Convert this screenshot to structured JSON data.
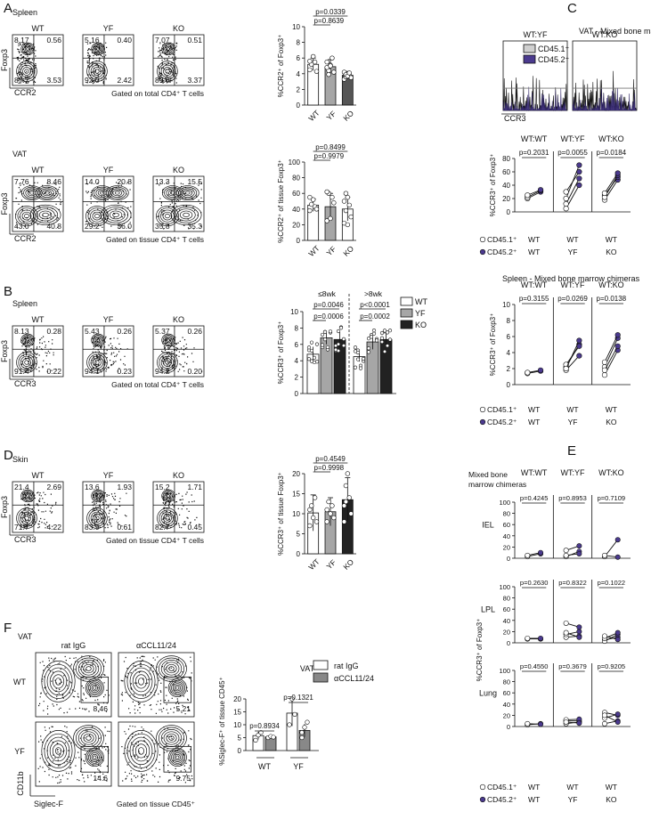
{
  "panel_letters": [
    "A",
    "B",
    "C",
    "D",
    "E",
    "F"
  ],
  "colors": {
    "wt": "#ffffff",
    "yf": "#a6a6a6",
    "ko": "#222222",
    "cd452": "#4b3a8f",
    "cd451": "#ffffff",
    "igg": "#ffffff",
    "ccl": "#888888"
  },
  "A": {
    "spleen": {
      "title": "Spleen",
      "gate": "Gated on total CD4⁺ T cells",
      "xlabel": "CCR2",
      "ylabel": "Foxp3",
      "plots": [
        {
          "label": "WT",
          "q": [
            "8.17",
            "0.56",
            "87.7",
            "3.53"
          ]
        },
        {
          "label": "YF",
          "q": [
            "5.16",
            "0.40",
            "92.0",
            "2.42"
          ]
        },
        {
          "label": "KO",
          "q": [
            "7.07",
            "0.51",
            "89.0",
            "3.37"
          ]
        }
      ]
    },
    "vat": {
      "title": "VAT",
      "gate": "Gated on tissue CD4⁺ T cells",
      "xlabel": "CCR2",
      "ylabel": "Foxp3",
      "plots": [
        {
          "label": "WT",
          "q": [
            "7.76",
            "8.46",
            "43.0",
            "40.8"
          ]
        },
        {
          "label": "YF",
          "q": [
            "14.0",
            "20.8",
            "29.2",
            "36.0"
          ]
        },
        {
          "label": "KO",
          "q": [
            "13.3",
            "15.5",
            "35.8",
            "35.3"
          ]
        }
      ]
    },
    "bar_spleen": {
      "ylabel": "%CCR2⁺ of Foxp3⁺",
      "yticks": [
        "0",
        "2",
        "4",
        "6",
        "8",
        "10"
      ],
      "ylim": [
        0,
        10
      ],
      "categories": [
        "WT",
        "YF",
        "KO"
      ],
      "values": [
        5.2,
        4.9,
        3.8
      ],
      "errors": [
        0.8,
        0.9,
        0.5
      ],
      "pvals": [
        "p=0.0339",
        "p=0.8639"
      ],
      "points": [
        [
          4.5,
          5.2,
          6.2,
          5.5,
          4.3,
          5.6
        ],
        [
          5.5,
          4.4,
          5.1,
          6.0,
          4.2,
          4.8,
          3.9,
          5.0
        ],
        [
          3.3,
          3.6,
          4.0,
          3.8,
          3.5,
          4.2,
          3.9,
          3.7,
          4.1
        ]
      ]
    },
    "bar_vat": {
      "ylabel": "%CCR2⁺ of tissue Foxp3⁺",
      "yticks": [
        "0",
        "20",
        "40",
        "60",
        "80",
        "100"
      ],
      "ylim": [
        0,
        100
      ],
      "categories": [
        "WT",
        "YF",
        "KO"
      ],
      "values": [
        45,
        43,
        40
      ],
      "errors": [
        8,
        17,
        15
      ],
      "pvals": [
        "p=0.8499",
        "p=0.9979"
      ],
      "points": [
        [
          38,
          46,
          52,
          43,
          40,
          55
        ],
        [
          25,
          60,
          28,
          55,
          48,
          62
        ],
        [
          22,
          60,
          55,
          45,
          30,
          50,
          38,
          20
        ]
      ]
    }
  },
  "B": {
    "title": "Spleen",
    "gate": "Gated on total CD4⁺ T cells",
    "xlabel": "CCR3",
    "ylabel": "Foxp3",
    "plots": [
      {
        "label": "WT",
        "q": [
          "8.13",
          "0.28",
          "91.4",
          "0.22"
        ]
      },
      {
        "label": "YF",
        "q": [
          "5.43",
          "0.26",
          "94.1",
          "0.23"
        ]
      },
      {
        "label": "KO",
        "q": [
          "5.37",
          "0.26",
          "94.2",
          "0.20"
        ]
      }
    ],
    "bar": {
      "ylabel": "%CCR3⁺ of Foxp3⁺",
      "yticks": [
        "0",
        "2",
        "4",
        "6",
        "8",
        "10"
      ],
      "ylim": [
        0,
        10
      ],
      "groups": [
        "≤8wk",
        ">8wk"
      ],
      "legend": [
        "WT",
        "YF",
        "KO"
      ],
      "values": [
        [
          4.8,
          6.8,
          6.6
        ],
        [
          4.5,
          6.3,
          6.6
        ]
      ],
      "errors": [
        [
          0.9,
          0.8,
          1.0
        ],
        [
          0.6,
          0.9,
          0.9
        ]
      ],
      "pvals": [
        [
          "p=0.0046",
          "p=0.0006"
        ],
        [
          "p<0.0001",
          "p=0.0002"
        ]
      ]
    }
  },
  "C": {
    "title": "VAT - Mixed bone marrow chimeras",
    "hist_titles": [
      "WT:YF",
      "WT:KO"
    ],
    "hist_legend": [
      "CD45.1⁺",
      "CD45.2⁺"
    ],
    "hist_xlabel": "CCR3",
    "vat": {
      "groups": [
        "WT:WT",
        "WT:YF",
        "WT:KO"
      ],
      "pvals": [
        "p=0.2031",
        "p=0.0055",
        "p=0.0184"
      ],
      "ylabel": "%CCR3⁺ of Foxp3⁺",
      "yticks": [
        "0",
        "20",
        "40",
        "60",
        "80"
      ],
      "ylim": [
        0,
        80
      ],
      "pairs": [
        [
          [
            20,
            30
          ],
          [
            22,
            32
          ],
          [
            25,
            33
          ]
        ],
        [
          [
            5,
            40
          ],
          [
            12,
            50
          ],
          [
            20,
            70
          ],
          [
            30,
            60
          ]
        ],
        [
          [
            18,
            48
          ],
          [
            25,
            52
          ],
          [
            22,
            55
          ],
          [
            28,
            58
          ]
        ]
      ],
      "cd451_row": [
        "CD45.1⁺",
        "WT",
        "WT",
        "WT"
      ],
      "cd452_row": [
        "CD45.2⁺",
        "WT",
        "YF",
        "KO"
      ]
    },
    "spleen": {
      "title": "Spleen - Mixed bone marrow chimeras",
      "groups": [
        "WT:WT",
        "WT:YF",
        "WT:KO"
      ],
      "pvals": [
        "p=0.3155",
        "p=0.0269",
        "p=0.0138"
      ],
      "ylabel": "%CCR3⁺ of Foxp3⁺",
      "yticks": [
        "0",
        "2",
        "4",
        "6",
        "8",
        "10"
      ],
      "ylim": [
        0,
        10
      ],
      "pairs": [
        [
          [
            1.4,
            1.7
          ],
          [
            1.5,
            1.8
          ]
        ],
        [
          [
            1.8,
            3.6
          ],
          [
            2.2,
            5.0
          ],
          [
            2.5,
            4.8
          ],
          [
            2.0,
            5.5
          ]
        ],
        [
          [
            1.2,
            4.3
          ],
          [
            2.2,
            5.8
          ],
          [
            2.8,
            6.2
          ],
          [
            1.8,
            4.8
          ]
        ]
      ],
      "cd451_row": [
        "CD45.1⁺",
        "WT",
        "WT",
        "WT"
      ],
      "cd452_row": [
        "CD45.2⁺",
        "WT",
        "YF",
        "KO"
      ]
    }
  },
  "D": {
    "title": "Skin",
    "gate": "Gated on tissue CD4⁺ T cells",
    "xlabel": "CCR3",
    "ylabel": "Foxp3",
    "plots": [
      {
        "label": "WT",
        "q": [
          "21.4",
          "2.69",
          "71.7",
          "4.22"
        ]
      },
      {
        "label": "YF",
        "q": [
          "13.6",
          "1.93",
          "83.9",
          "0.61"
        ]
      },
      {
        "label": "KO",
        "q": [
          "15.2",
          "1.71",
          "82.7",
          "0.45"
        ]
      }
    ],
    "bar": {
      "ylabel": "%CCR3⁺ of tissue Foxp3⁺",
      "yticks": [
        "0",
        "5",
        "10",
        "15",
        "20"
      ],
      "ylim": [
        0,
        20
      ],
      "categories": [
        "WT",
        "YF",
        "KO"
      ],
      "values": [
        10.2,
        10.5,
        13.5
      ],
      "errors": [
        4.5,
        3.5,
        5.5
      ],
      "pvals": [
        "p=0.4549",
        "p=0.9998"
      ],
      "points": [
        [
          7,
          12,
          9,
          14,
          8,
          11
        ],
        [
          8,
          13,
          10,
          12,
          9,
          11
        ],
        [
          8,
          17,
          20,
          14,
          10,
          12,
          13
        ]
      ]
    }
  },
  "E": {
    "title_lines": [
      "Mixed bone",
      "marrow chimeras"
    ],
    "groups": [
      "WT:WT",
      "WT:YF",
      "WT:KO"
    ],
    "ylabel": "%CCR3⁺ of Foxp3⁺",
    "yticks": [
      "0",
      "20",
      "40",
      "60",
      "80",
      "100"
    ],
    "ylim": [
      0,
      100
    ],
    "tissues": [
      {
        "name": "IEL",
        "pvals": [
          "p=0.4245",
          "p=0.8953",
          "p=0.7109"
        ],
        "pairs": [
          [
            [
              3,
              8
            ],
            [
              5,
              10
            ]
          ],
          [
            [
              3,
              12
            ],
            [
              14,
              22
            ],
            [
              5,
              8
            ]
          ],
          [
            [
              3,
              33
            ],
            [
              5,
              2
            ]
          ]
        ]
      },
      {
        "name": "LPL",
        "pvals": [
          "p=0.2630",
          "p=0.8322",
          "p=0.1022"
        ],
        "pairs": [
          [
            [
              7,
              7
            ],
            [
              8,
              8
            ]
          ],
          [
            [
              10,
              12
            ],
            [
              15,
              20
            ],
            [
              35,
              28
            ],
            [
              18,
              10
            ]
          ],
          [
            [
              5,
              10
            ],
            [
              3,
              15
            ],
            [
              8,
              18
            ],
            [
              12,
              6
            ]
          ]
        ]
      },
      {
        "name": "Lung",
        "pvals": [
          "p=0.4550",
          "p=0.3679",
          "p=0.9205"
        ],
        "pairs": [
          [
            [
              3,
              5
            ],
            [
              5,
              4
            ]
          ],
          [
            [
              5,
              8
            ],
            [
              10,
              10
            ],
            [
              12,
              13
            ],
            [
              8,
              6
            ]
          ],
          [
            [
              25,
              20
            ],
            [
              15,
              22
            ],
            [
              5,
              10
            ],
            [
              20,
              8
            ]
          ]
        ]
      }
    ],
    "cd451_row": [
      "CD45.1⁺",
      "WT",
      "WT",
      "WT"
    ],
    "cd452_row": [
      "CD45.2⁺",
      "WT",
      "YF",
      "KO"
    ]
  },
  "F": {
    "title": "VAT",
    "col_labels": [
      "rat IgG",
      "αCCL11/24"
    ],
    "row_labels": [
      "WT",
      "YF"
    ],
    "numbers": [
      "8.46",
      "5.21",
      "14.6",
      "9.75"
    ],
    "xlabel": "Siglec-F",
    "ylabel": "CD11b",
    "gate": "Gated on tissue CD45⁺",
    "bar": {
      "title": "VAT",
      "ylabel": "%Siglec-F⁺ of tissue CD45⁺",
      "yticks": [
        "0",
        "5",
        "10",
        "15",
        "20"
      ],
      "ylim": [
        0,
        20
      ],
      "groups": [
        "WT",
        "YF"
      ],
      "legend": [
        "rat IgG",
        "αCCL11/24"
      ],
      "values": [
        [
          5.8,
          5.3
        ],
        [
          14.5,
          7.8
        ]
      ],
      "errors": [
        [
          1.5,
          0.5
        ],
        [
          5,
          2.5
        ]
      ],
      "pvals": [
        "p=0.8934",
        "p=0.1321"
      ],
      "points": [
        [
          [
            4,
            6,
            7
          ],
          [
            5,
            5.5,
            5.2
          ]
        ],
        [
          [
            10,
            20,
            14
          ],
          [
            5,
            9,
            11,
            7
          ]
        ]
      ]
    }
  }
}
